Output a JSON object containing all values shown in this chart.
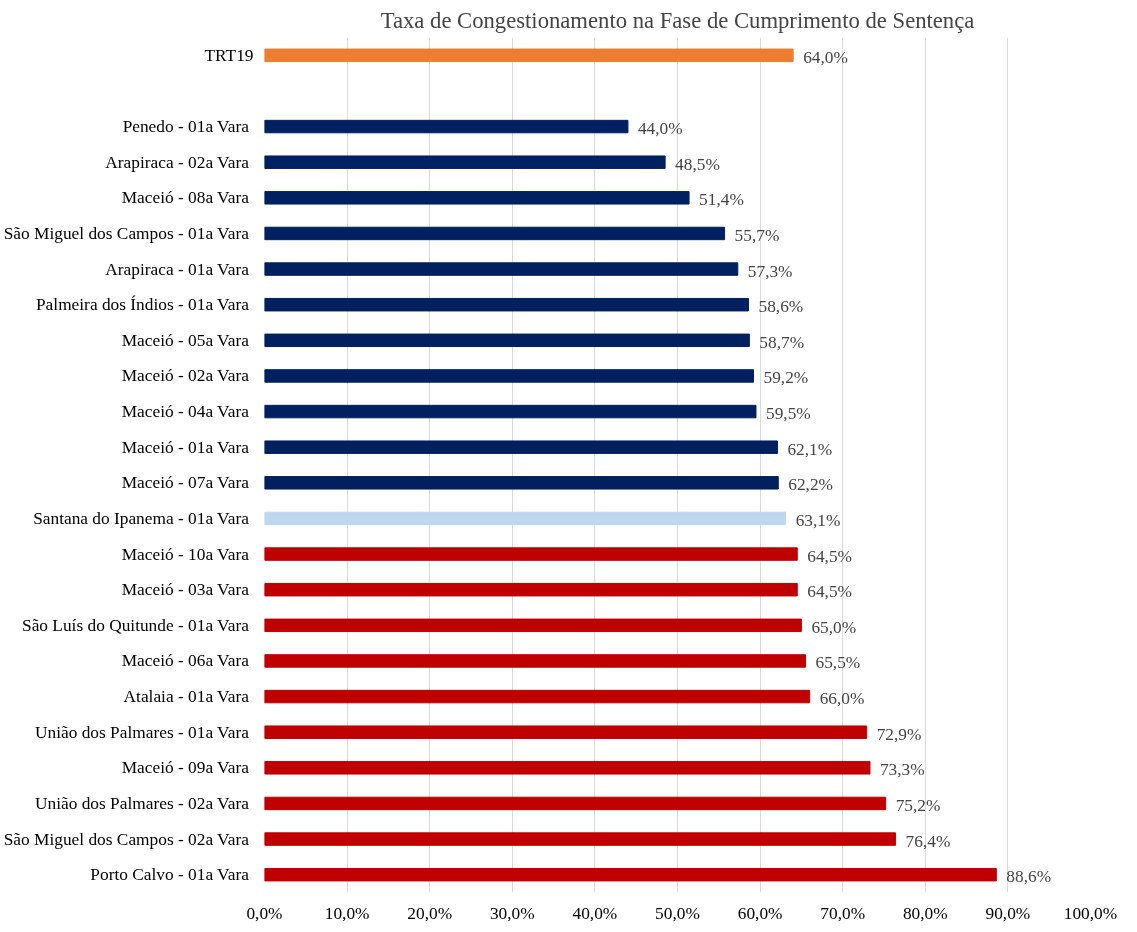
{
  "chart_data": {
    "type": "bar",
    "orientation": "horizontal",
    "title": "Taxa de Congestionamento na Fase de Cumprimento de Sentença",
    "categories": [
      "TRT19",
      null,
      "Penedo  - 01a Vara",
      "Arapiraca  - 02a Vara",
      "Maceió  - 08a Vara",
      "São Miguel dos Campos  - 01a Vara",
      "Arapiraca  - 01a Vara",
      "Palmeira dos Índios  - 01a Vara",
      "Maceió  - 05a Vara",
      "Maceió  - 02a Vara",
      "Maceió  - 04a Vara",
      "Maceió  - 01a Vara",
      "Maceió  - 07a Vara",
      "Santana do Ipanema  - 01a Vara",
      "Maceió  - 10a Vara",
      "Maceió  - 03a Vara",
      "São Luís do Quitunde  - 01a Vara",
      "Maceió  - 06a Vara",
      "Atalaia  - 01a Vara",
      "União dos Palmares  - 01a Vara",
      "Maceió  - 09a Vara",
      "União dos Palmares  - 02a Vara",
      "São Miguel dos Campos  - 02a Vara",
      "Porto Calvo  - 01a Vara"
    ],
    "values": [
      64.0,
      null,
      44.0,
      48.5,
      51.4,
      55.7,
      57.3,
      58.6,
      58.7,
      59.2,
      59.5,
      62.1,
      62.2,
      63.1,
      64.5,
      64.5,
      65.0,
      65.5,
      66.0,
      72.9,
      73.3,
      75.2,
      76.4,
      88.6
    ],
    "value_labels": [
      "64,0%",
      null,
      "44,0%",
      "48,5%",
      "51,4%",
      "55,7%",
      "57,3%",
      "58,6%",
      "58,7%",
      "59,2%",
      "59,5%",
      "62,1%",
      "62,2%",
      "63,1%",
      "64,5%",
      "64,5%",
      "65,0%",
      "65,5%",
      "66,0%",
      "72,9%",
      "73,3%",
      "75,2%",
      "76,4%",
      "88,6%"
    ],
    "colors": [
      "#ed7d31",
      "#002060",
      "#002060",
      "#002060",
      "#002060",
      "#002060",
      "#002060",
      "#002060",
      "#002060",
      "#002060",
      "#002060",
      "#002060",
      "#002060",
      "#bdd7ee",
      "#c00000",
      "#c00000",
      "#c00000",
      "#c00000",
      "#c00000",
      "#c00000",
      "#c00000",
      "#c00000",
      "#c00000",
      "#c00000"
    ],
    "xlim": [
      0,
      100
    ],
    "xticks": [
      {
        "value": 0,
        "label": "0,0%"
      },
      {
        "value": 10,
        "label": "10,0%"
      },
      {
        "value": 20,
        "label": "20,0%"
      },
      {
        "value": 30,
        "label": "30,0%"
      },
      {
        "value": 40,
        "label": "40,0%"
      },
      {
        "value": 50,
        "label": "50,0%"
      },
      {
        "value": 60,
        "label": "60,0%"
      },
      {
        "value": 70,
        "label": "70,0%"
      },
      {
        "value": 80,
        "label": "80,0%"
      },
      {
        "value": 90,
        "label": "90,0%"
      },
      {
        "value": 100,
        "label": "100,0%"
      }
    ],
    "grid": "x"
  }
}
